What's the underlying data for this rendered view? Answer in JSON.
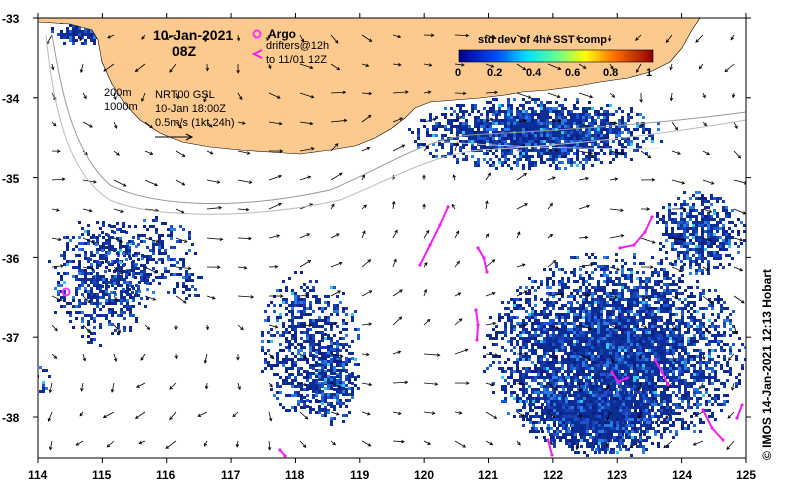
{
  "map": {
    "date": "10-Jan-2021",
    "hour": "08Z",
    "legend": {
      "argo_label": "Argo",
      "drifters_line1": "drifters@12h",
      "drifters_line2": "to 11/01 12Z"
    },
    "isobaths": {
      "shallow": "200m",
      "deep": "1000m"
    },
    "product": "NRT00 GSL",
    "valid_time": "10-Jan 18:00Z",
    "current_scale": "0.5m/s (1kt 24h)",
    "colorbar": {
      "title": "std dev of 4hr SST comp",
      "ticks": [
        "0",
        "0.2",
        "0.4",
        "0.6",
        "0.8",
        "1"
      ]
    },
    "credit": "© IMOS 14-Jan-2021 12:13 Hobart",
    "x_axis": [
      "114",
      "115",
      "116",
      "117",
      "118",
      "119",
      "120",
      "121",
      "122",
      "123",
      "124",
      "125"
    ],
    "y_axis": [
      "-33",
      "-34",
      "-35",
      "-36",
      "-37",
      "-38"
    ],
    "colors": {
      "land": "#fcc98f",
      "sst_dense": "#0a2d9a",
      "argo": "#ff33ff",
      "drifters": "#ee22ee"
    }
  }
}
